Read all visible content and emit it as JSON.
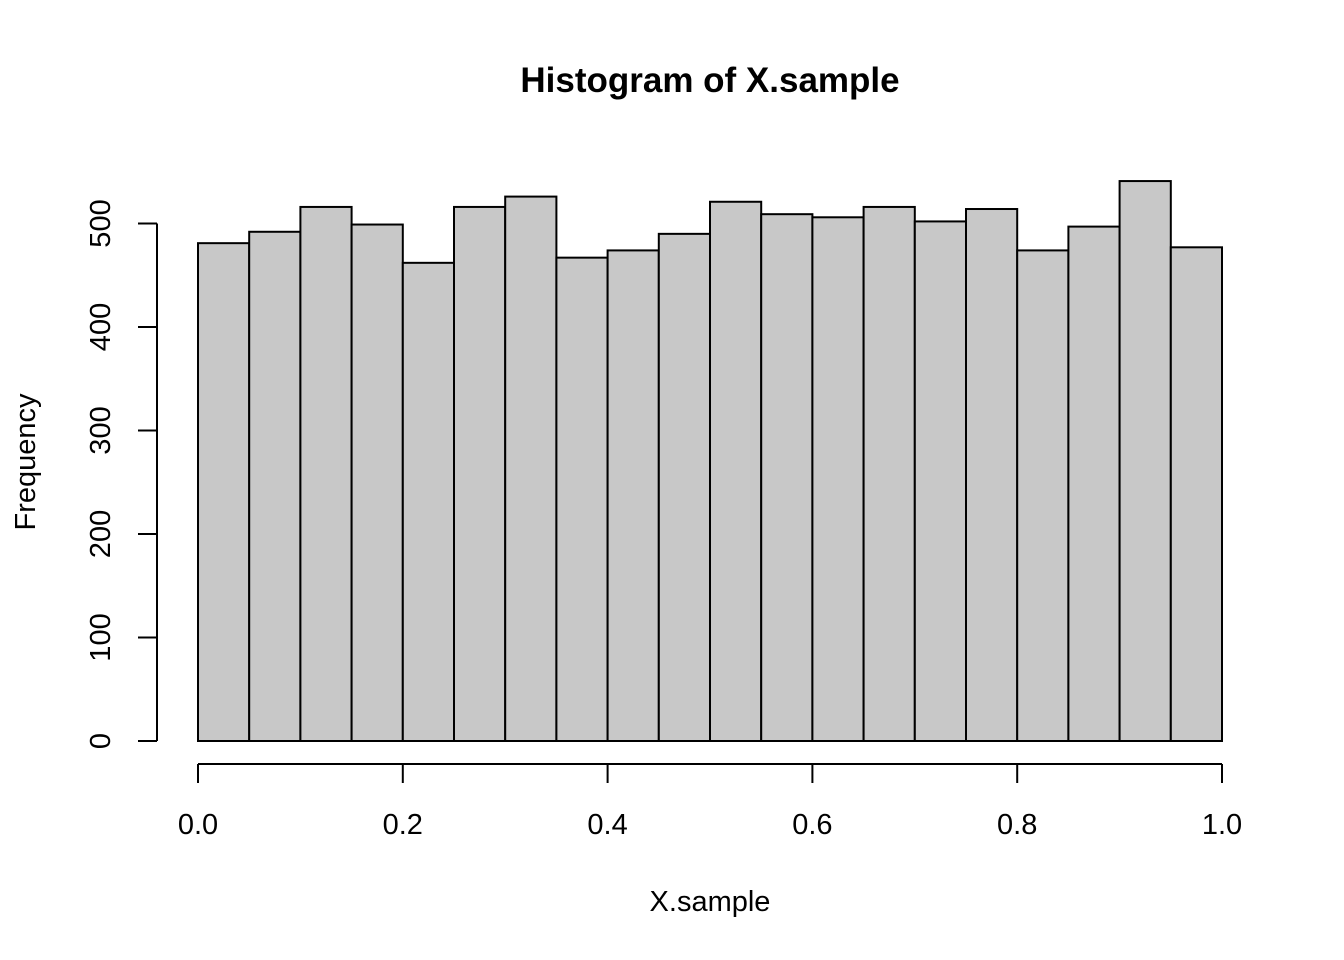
{
  "chart_data": {
    "type": "bar",
    "title": "Histogram of X.sample",
    "xlabel": "X.sample",
    "ylabel": "Frequency",
    "bin_edges": [
      0.0,
      0.05,
      0.1,
      0.15,
      0.2,
      0.25,
      0.3,
      0.35,
      0.4,
      0.45,
      0.5,
      0.55,
      0.6,
      0.65,
      0.7,
      0.75,
      0.8,
      0.85,
      0.9,
      0.95,
      1.0
    ],
    "values": [
      481,
      492,
      516,
      499,
      462,
      516,
      526,
      467,
      474,
      490,
      521,
      509,
      506,
      516,
      502,
      514,
      474,
      497,
      541,
      477
    ],
    "xlim": [
      0,
      1
    ],
    "ylim": [
      0,
      541
    ],
    "x_ticks": [
      0.0,
      0.2,
      0.4,
      0.6,
      0.8,
      1.0
    ],
    "x_tick_labels": [
      "0.0",
      "0.2",
      "0.4",
      "0.6",
      "0.8",
      "1.0"
    ],
    "y_ticks": [
      0,
      100,
      200,
      300,
      400,
      500
    ],
    "y_tick_labels": [
      "0",
      "100",
      "200",
      "300",
      "400",
      "500"
    ],
    "bar_color": "#c8c8c8",
    "bar_edge_color": "#000000",
    "grid": false
  }
}
